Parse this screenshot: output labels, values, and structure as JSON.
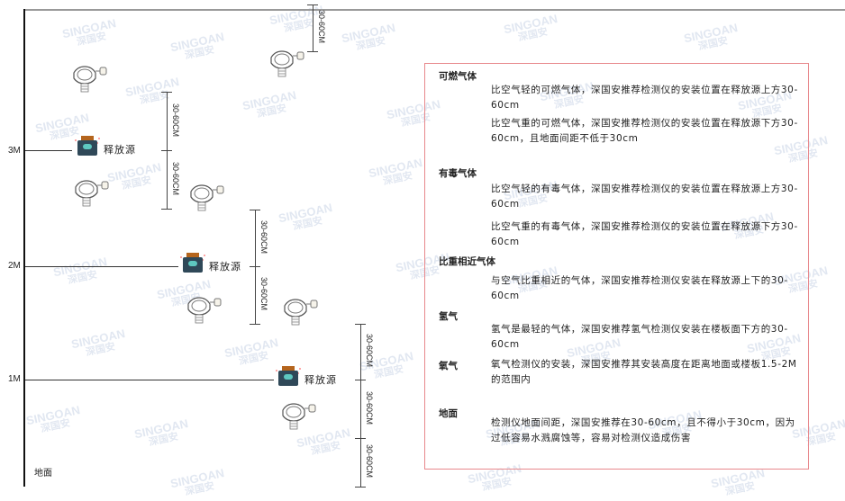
{
  "watermark": {
    "brand": "SINGOAN",
    "cn": "深国安"
  },
  "levels": [
    {
      "label": "3M"
    },
    {
      "label": "2M"
    },
    {
      "label": "1M"
    }
  ],
  "floor_label": "地面",
  "source_label": "释放源",
  "dimension_label": "30-60CM",
  "legend": {
    "sections": [
      {
        "title": "可燃气体",
        "paragraphs": [
          "比空气轻的可燃气体，深国安推荐检测仪的安装位置在释放源上方30-60cm",
          "比空气重的可燃气体，深国安推荐检测仪的安装位置在释放源下方30-60cm，且地面间距不低于30cm"
        ]
      },
      {
        "title": "有毒气体",
        "paragraphs": [
          "比空气轻的有毒气体，深国安推荐检测仪的安装位置在释放源上方30-60cm",
          "比空气重的有毒气体，深国安推荐检测仪的安装位置在释放源下方30-60cm"
        ]
      },
      {
        "title": "比重相近气体",
        "paragraphs": [
          "与空气比重相近的气体，深国安推荐检测仪安装在释放源上下的30-60cm"
        ]
      },
      {
        "title": "氢气",
        "paragraphs": [
          "氢气是最轻的气体，深国安推荐氢气检测仪安装在楼板面下方的30-60cm"
        ]
      },
      {
        "title": "氧气",
        "paragraphs": [
          "氧气检测仪的安装，深国安推荐其安装高度在距离地面或楼板1.5-2M的范围内"
        ]
      },
      {
        "title": "地面",
        "paragraphs": [
          "检测仪地面间距，深国安推荐在30-60cm，且不得小于30cm，因为过低容易水溅腐蚀等，容易对检测仪造成伤害"
        ]
      }
    ]
  },
  "colors": {
    "box_border": "#e8888c",
    "source_body": "#2f4858",
    "source_cap": "#b5651d",
    "source_face": "#5ec8c0"
  }
}
